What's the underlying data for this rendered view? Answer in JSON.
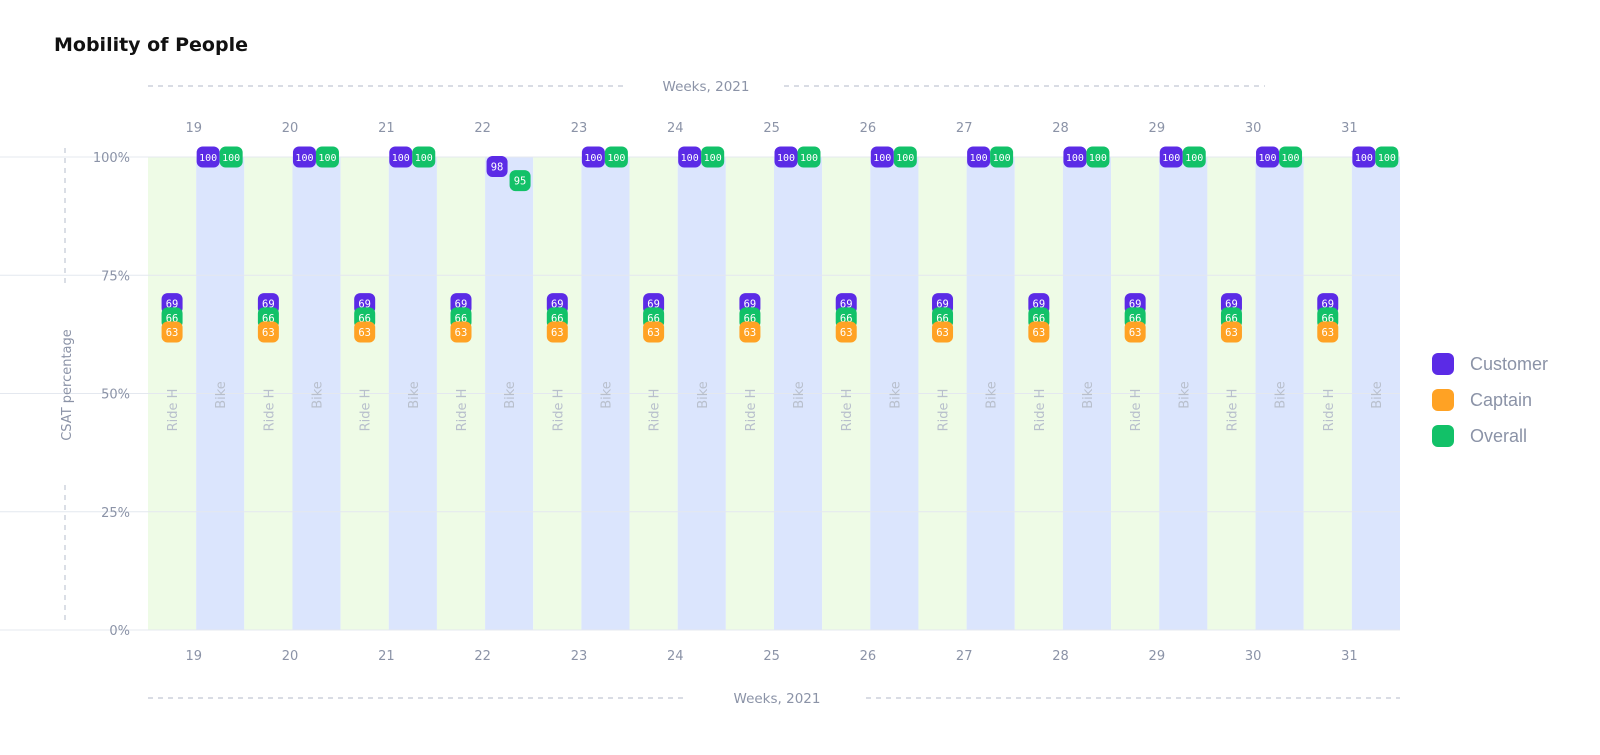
{
  "title": "Mobility of People",
  "chart_data": {
    "type": "scatter",
    "title": "Mobility of People",
    "xlabel": "Weeks, 2021",
    "ylabel": "CSAT percentage",
    "ylim": [
      0,
      100
    ],
    "yticks": [
      "0%",
      "25%",
      "50%",
      "75%",
      "100%"
    ],
    "categories": [
      "19",
      "20",
      "21",
      "22",
      "23",
      "24",
      "25",
      "26",
      "27",
      "28",
      "29",
      "30",
      "31"
    ],
    "subcategories": [
      "Ride Hailing",
      "Bike"
    ],
    "subcategory_labels": [
      "Ride H",
      "Bike"
    ],
    "colors": {
      "Customer": "#5b2be6",
      "Captain": "#ffa224",
      "Overall": "#12c168",
      "ride_band": "#eefbe6",
      "bike_band": "#dbe5fd"
    },
    "series": [
      {
        "name": "Customer",
        "ride_hailing": [
          69,
          69,
          69,
          69,
          69,
          69,
          69,
          69,
          69,
          69,
          69,
          69,
          69
        ],
        "bike": [
          100,
          100,
          100,
          98,
          100,
          100,
          100,
          100,
          100,
          100,
          100,
          100,
          100
        ]
      },
      {
        "name": "Captain",
        "ride_hailing": [
          63,
          63,
          63,
          63,
          63,
          63,
          63,
          63,
          63,
          63,
          63,
          63,
          63
        ],
        "bike": []
      },
      {
        "name": "Overall",
        "ride_hailing": [
          66,
          66,
          66,
          66,
          66,
          66,
          66,
          66,
          66,
          66,
          66,
          66,
          66
        ],
        "bike": [
          100,
          100,
          100,
          95,
          100,
          100,
          100,
          100,
          100,
          100,
          100,
          100,
          100
        ]
      }
    ],
    "legend_position": "right",
    "grid": true
  }
}
